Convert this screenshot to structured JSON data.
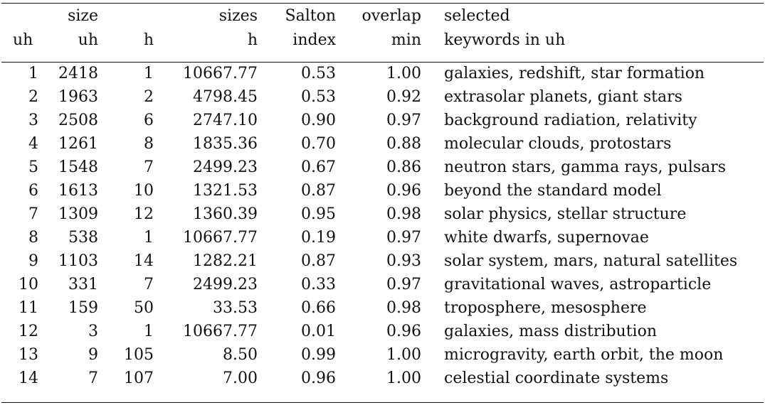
{
  "headers": {
    "row1": [
      "",
      "size",
      "",
      "sizes",
      "Salton",
      "overlap",
      "selected"
    ],
    "row2": [
      "uh",
      "uh",
      "h",
      "h",
      "index",
      "min",
      "keywords in uh"
    ]
  },
  "rows": [
    [
      "1",
      "2418",
      "1",
      "10667.77",
      "0.53",
      "1.00",
      "galaxies, redshift, star formation"
    ],
    [
      "2",
      "1963",
      "2",
      "4798.45",
      "0.53",
      "0.92",
      "extrasolar planets, giant stars"
    ],
    [
      "3",
      "2508",
      "6",
      "2747.10",
      "0.90",
      "0.97",
      "background radiation, relativity"
    ],
    [
      "4",
      "1261",
      "8",
      "1835.36",
      "0.70",
      "0.88",
      "molecular clouds, protostars"
    ],
    [
      "5",
      "1548",
      "7",
      "2499.23",
      "0.67",
      "0.86",
      "neutron stars, gamma rays, pulsars"
    ],
    [
      "6",
      "1613",
      "10",
      "1321.53",
      "0.87",
      "0.96",
      "beyond the standard model"
    ],
    [
      "7",
      "1309",
      "12",
      "1360.39",
      "0.95",
      "0.98",
      "solar physics, stellar structure"
    ],
    [
      "8",
      "538",
      "1",
      "10667.77",
      "0.19",
      "0.97",
      "white dwarfs, supernovae"
    ],
    [
      "9",
      "1103",
      "14",
      "1282.21",
      "0.87",
      "0.93",
      "solar system, mars, natural satellites"
    ],
    [
      "10",
      "331",
      "7",
      "2499.23",
      "0.33",
      "0.97",
      "gravitational waves, astroparticle"
    ],
    [
      "11",
      "159",
      "50",
      "33.53",
      "0.66",
      "0.98",
      "troposphere, mesosphere"
    ],
    [
      "12",
      "3",
      "1",
      "10667.77",
      "0.01",
      "0.96",
      "galaxies, mass distribution"
    ],
    [
      "13",
      "9",
      "105",
      "8.50",
      "0.99",
      "1.00",
      "microgravity, earth orbit, the moon"
    ],
    [
      "14",
      "7",
      "107",
      "7.00",
      "0.96",
      "1.00",
      "celestial coordinate systems"
    ]
  ]
}
